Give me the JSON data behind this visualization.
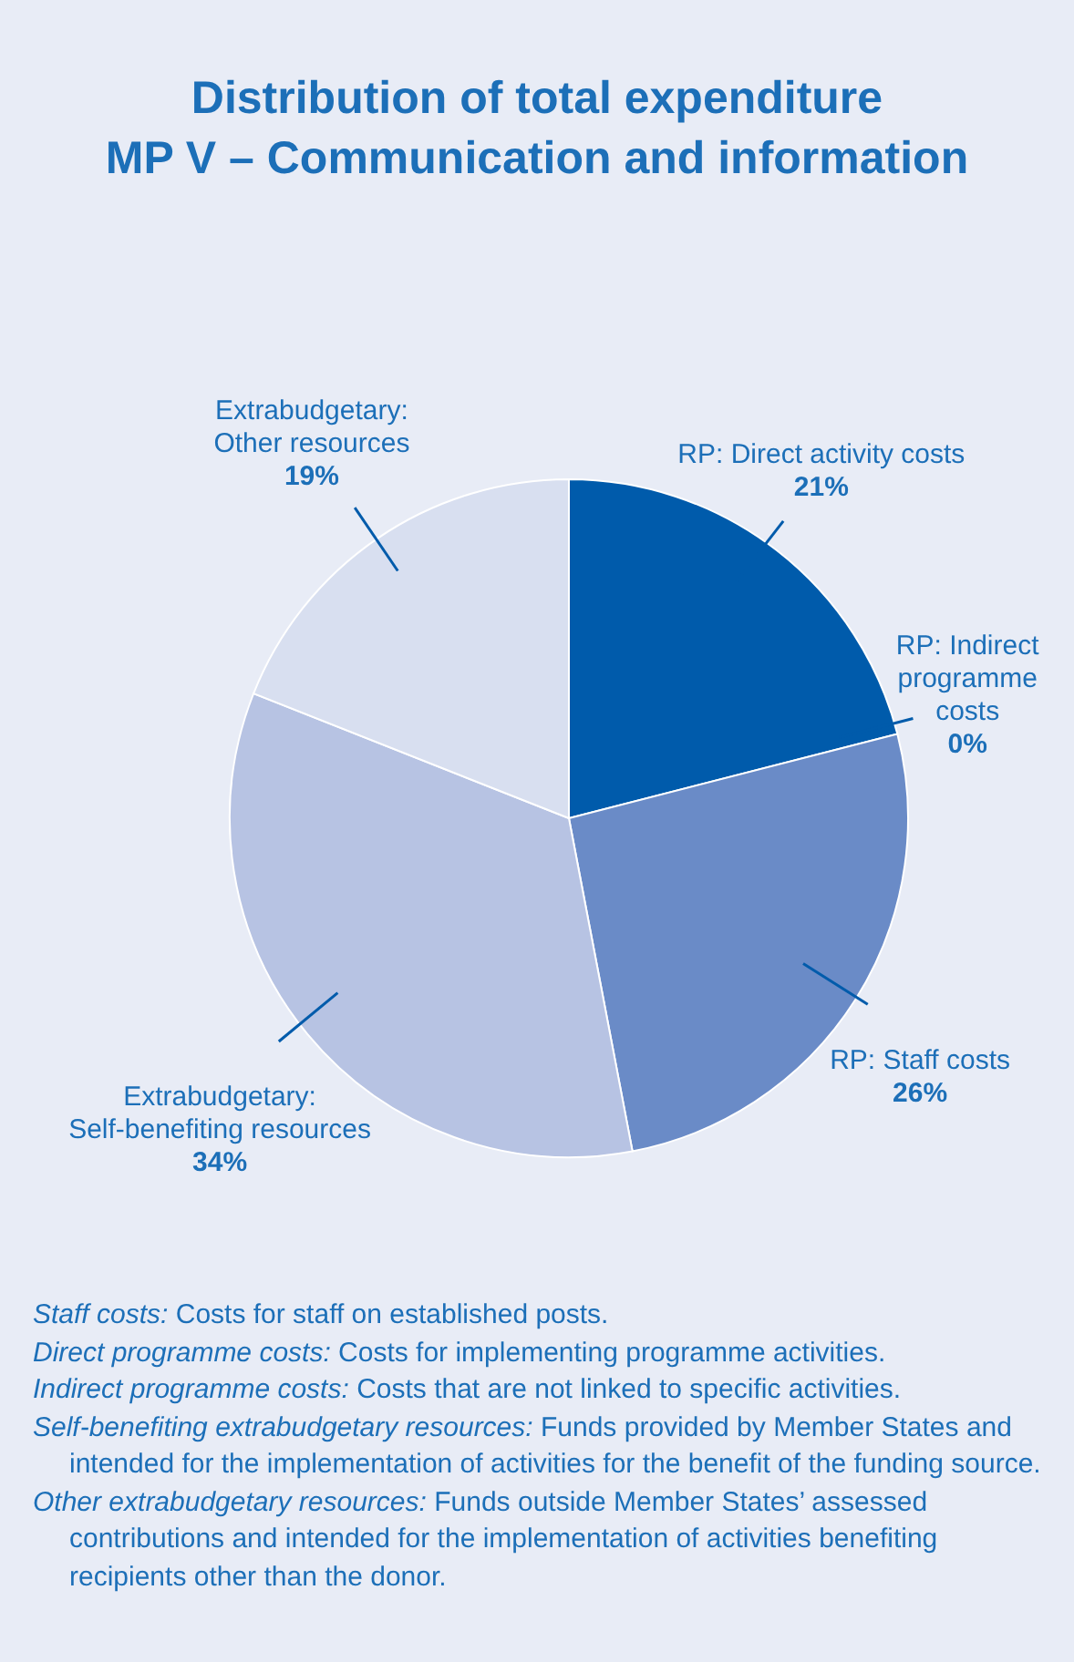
{
  "chart_data": {
    "type": "pie",
    "title": "Distribution of total expenditure",
    "subtitle": "MP V – Communication and information",
    "categories": [
      "RP: Direct activity costs",
      "RP: Indirect programme costs",
      "RP: Staff costs",
      "Extrabudgetary: Self-benefiting resources",
      "Extrabudgetary: Other resources"
    ],
    "values": [
      21,
      0,
      26,
      34,
      19
    ],
    "value_labels": [
      "21%",
      "0%",
      "26%",
      "34%",
      "19%"
    ],
    "colors": [
      "#005bab",
      "#2e6fb8",
      "#6a8bc7",
      "#b7c3e3",
      "#d8dff0"
    ],
    "legend": false,
    "annotations": [
      "Staff costs: Costs for staff on established posts.",
      "Direct programme costs: Costs for implementing programme activities.",
      "Indirect programme costs: Costs that are not linked to specific activities.",
      "Self-benefiting extrabudgetary resources: Funds provided by Member States and intended for the implementation of activities for the benefit of the funding source.",
      "Other extrabudgetary resources: Funds outside Member States’ assessed contributions and intended for the implementation of activities benefiting recipients other than the donor."
    ]
  }
}
